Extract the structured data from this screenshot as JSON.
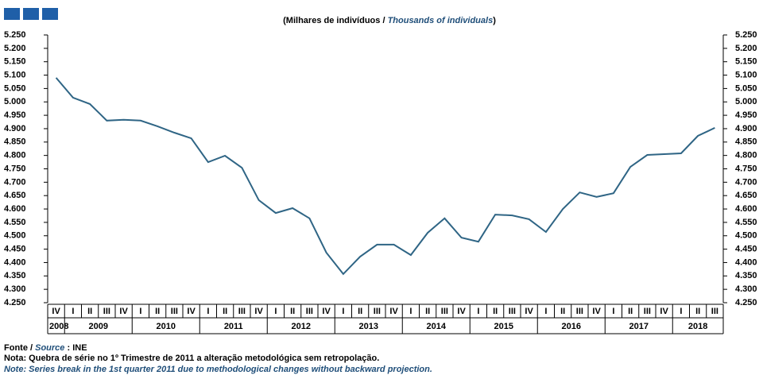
{
  "chart_data": {
    "type": "line",
    "subtitle": "(Milhares  de indivíduos  /",
    "subtitle_en": "Thousands  of individuals",
    "subtitle_close": ")",
    "categories": [
      "IV",
      "I",
      "II",
      "III",
      "IV",
      "I",
      "II",
      "III",
      "IV",
      "I",
      "II",
      "III",
      "IV",
      "I",
      "II",
      "III",
      "IV",
      "I",
      "II",
      "III",
      "IV",
      "I",
      "II",
      "III",
      "IV",
      "I",
      "II",
      "III",
      "IV",
      "I",
      "II",
      "III",
      "IV",
      "I",
      "II",
      "III",
      "IV",
      "I",
      "II",
      "III"
    ],
    "years": [
      "2008",
      "2009",
      "2010",
      "2011",
      "2012",
      "2013",
      "2014",
      "2015",
      "2016",
      "2017",
      "2018"
    ],
    "series": [
      {
        "color": "#2f6585",
        "values": [
          5090,
          5016,
          4992,
          4930,
          4933,
          4930,
          4909,
          4885,
          4864,
          4775,
          4799,
          4754,
          4633,
          4585,
          4603,
          4565,
          4437,
          4357,
          4422,
          4467,
          4467,
          4428,
          4511,
          4565,
          4493,
          4478,
          4579,
          4576,
          4562,
          4514,
          4600,
          4662,
          4645,
          4659,
          4757,
          4802,
          4805,
          4808,
          4873,
          4903
        ]
      }
    ],
    "ylim": [
      4250,
      5250
    ],
    "yticks": [
      {
        "value": 4250,
        "label": "4.250"
      },
      {
        "value": 4300,
        "label": "4.300"
      },
      {
        "value": 4350,
        "label": "4.350"
      },
      {
        "value": 4400,
        "label": "4.400"
      },
      {
        "value": 4450,
        "label": "4.450"
      },
      {
        "value": 4500,
        "label": "4.500"
      },
      {
        "value": 4550,
        "label": "4.550"
      },
      {
        "value": 4600,
        "label": "4.600"
      },
      {
        "value": 4650,
        "label": "4.650"
      },
      {
        "value": 4700,
        "label": "4.700"
      },
      {
        "value": 4750,
        "label": "4.750"
      },
      {
        "value": 4800,
        "label": "4.800"
      },
      {
        "value": 4850,
        "label": "4.850"
      },
      {
        "value": 4900,
        "label": "4.900"
      },
      {
        "value": 4950,
        "label": "4.950"
      },
      {
        "value": 5000,
        "label": "5.000"
      },
      {
        "value": 5050,
        "label": "5.050"
      },
      {
        "value": 5100,
        "label": "5.100"
      },
      {
        "value": 5150,
        "label": "5.150"
      },
      {
        "value": 5200,
        "label": "5.200"
      },
      {
        "value": 5250,
        "label": "5.250"
      }
    ],
    "y2lim": [
      4250,
      5250
    ],
    "y2ticks": [
      {
        "value": 4250,
        "label": "4.250"
      },
      {
        "value": 4300,
        "label": "4.300"
      },
      {
        "value": 4350,
        "label": "4.350"
      },
      {
        "value": 4400,
        "label": "4.400"
      },
      {
        "value": 4450,
        "label": "4.450"
      },
      {
        "value": 4500,
        "label": "4.500"
      },
      {
        "value": 4550,
        "label": "4.550"
      },
      {
        "value": 4600,
        "label": "4.600"
      },
      {
        "value": 4650,
        "label": "4.650"
      },
      {
        "value": 4700,
        "label": "4.700"
      },
      {
        "value": 4750,
        "label": "4.750"
      },
      {
        "value": 4800,
        "label": "4.800"
      },
      {
        "value": 4850,
        "label": "4.850"
      },
      {
        "value": 4900,
        "label": "4.900"
      },
      {
        "value": 4950,
        "label": "4.950"
      },
      {
        "value": 5000,
        "label": "5.000"
      },
      {
        "value": 5050,
        "label": "5.050"
      },
      {
        "value": 5100,
        "label": "5.100"
      },
      {
        "value": 5150,
        "label": "5.150"
      },
      {
        "value": 5200,
        "label": "5.200"
      },
      {
        "value": 5250,
        "label": "5.250"
      }
    ],
    "source_label": "Fonte /",
    "source_label_en": "Source",
    "source": ": INE",
    "note": "Nota: Quebra de série no 1º Trimestre de 2011 a alteração metodológica sem retropolação.",
    "note_en": "Note: Series break in the 1st quarter 2011 due to methodological changes without backward projection."
  }
}
